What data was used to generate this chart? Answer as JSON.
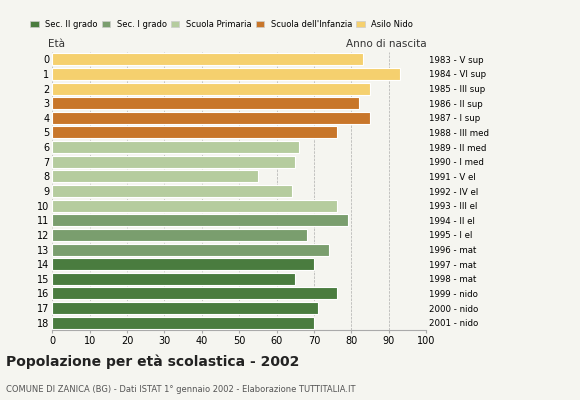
{
  "ages": [
    0,
    1,
    2,
    3,
    4,
    5,
    6,
    7,
    8,
    9,
    10,
    11,
    12,
    13,
    14,
    15,
    16,
    17,
    18
  ],
  "years": [
    "2001 - nido",
    "2000 - nido",
    "1999 - nido",
    "1998 - mat",
    "1997 - mat",
    "1996 - mat",
    "1995 - I el",
    "1994 - II el",
    "1993 - III el",
    "1992 - IV el",
    "1991 - V el",
    "1990 - I med",
    "1989 - II med",
    "1988 - III med",
    "1987 - I sup",
    "1986 - II sup",
    "1985 - III sup",
    "1984 - VI sup",
    "1983 - V sup"
  ],
  "values": [
    83,
    93,
    85,
    82,
    85,
    76,
    66,
    65,
    55,
    64,
    76,
    79,
    68,
    74,
    70,
    65,
    76,
    71,
    70
  ],
  "colors": [
    "#f5d06e",
    "#f5d06e",
    "#f5d06e",
    "#c8762a",
    "#c8762a",
    "#c8762a",
    "#b5cc9e",
    "#b5cc9e",
    "#b5cc9e",
    "#b5cc9e",
    "#b5cc9e",
    "#7a9e6e",
    "#7a9e6e",
    "#7a9e6e",
    "#4a7c3f",
    "#4a7c3f",
    "#4a7c3f",
    "#4a7c3f",
    "#4a7c3f"
  ],
  "legend_labels": [
    "Sec. II grado",
    "Sec. I grado",
    "Scuola Primaria",
    "Scuola dell'Infanzia",
    "Asilo Nido"
  ],
  "legend_colors": [
    "#4a7c3f",
    "#7a9e6e",
    "#b5cc9e",
    "#c8762a",
    "#f5d06e"
  ],
  "title": "Popolazione per età scolastica - 2002",
  "subtitle": "COMUNE DI ZANICA (BG) - Dati ISTAT 1° gennaio 2002 - Elaborazione TUTTITALIA.IT",
  "label_left": "Età",
  "label_right": "Anno di nascita",
  "xlim": [
    0,
    100
  ],
  "xticks": [
    0,
    10,
    20,
    30,
    40,
    50,
    60,
    70,
    80,
    90,
    100
  ],
  "bg_color": "#f5f5f0",
  "bar_height": 0.82,
  "dpi": 100
}
